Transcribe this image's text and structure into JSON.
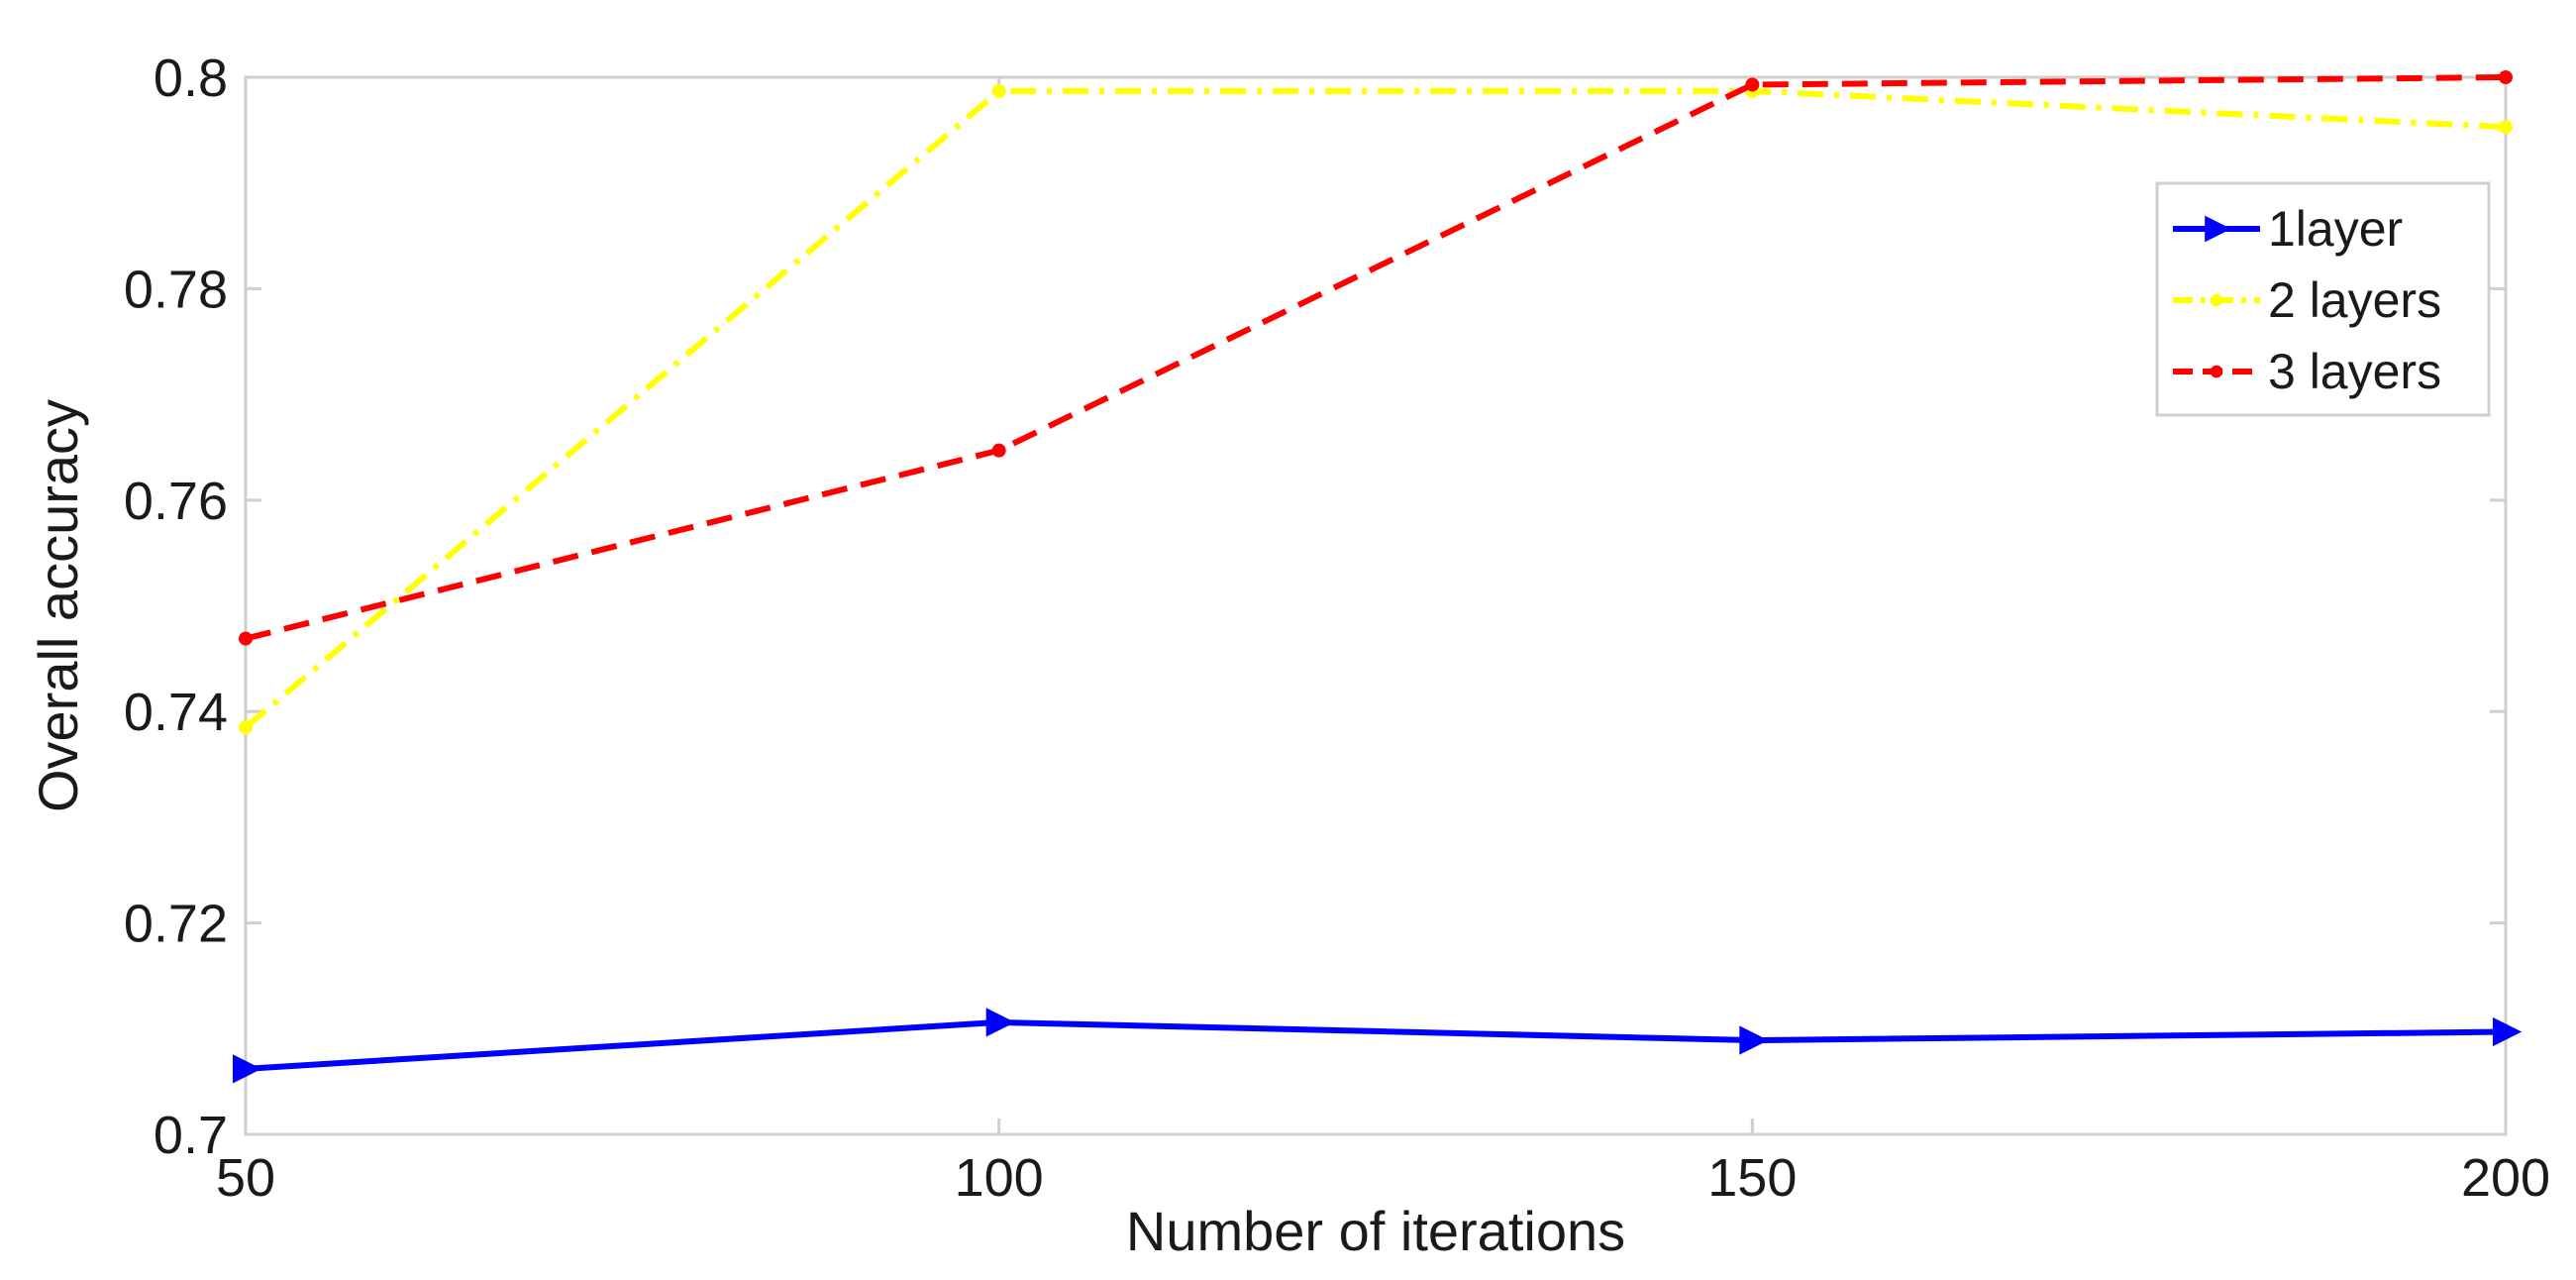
{
  "chart_data": {
    "type": "line",
    "xlabel": "Number of iterations",
    "ylabel": "Overall accuracy",
    "x": [
      50,
      100,
      150,
      200
    ],
    "xlim": [
      50,
      200
    ],
    "ylim": [
      0.7,
      0.8
    ],
    "xticks": [
      "50",
      "100",
      "150",
      "200"
    ],
    "yticks": [
      "0.7",
      "0.72",
      "0.74",
      "0.76",
      "0.78",
      "0.8"
    ],
    "grid": false,
    "legend_position": "top-right",
    "series": [
      {
        "name": "1layer",
        "values": [
          0.7062,
          0.7106,
          0.7089,
          0.7097
        ],
        "color": "#0000ff",
        "line_style": "solid",
        "marker": "triangle-right"
      },
      {
        "name": "2 layers",
        "values": [
          0.7385,
          0.7987,
          0.7987,
          0.7953
        ],
        "color": "#ffff00",
        "line_style": "dash-dot",
        "marker": "point"
      },
      {
        "name": "3 layers",
        "values": [
          0.7469,
          0.7647,
          0.7993,
          0.8
        ],
        "color": "#ff0000",
        "line_style": "dashed",
        "marker": "point"
      }
    ]
  }
}
